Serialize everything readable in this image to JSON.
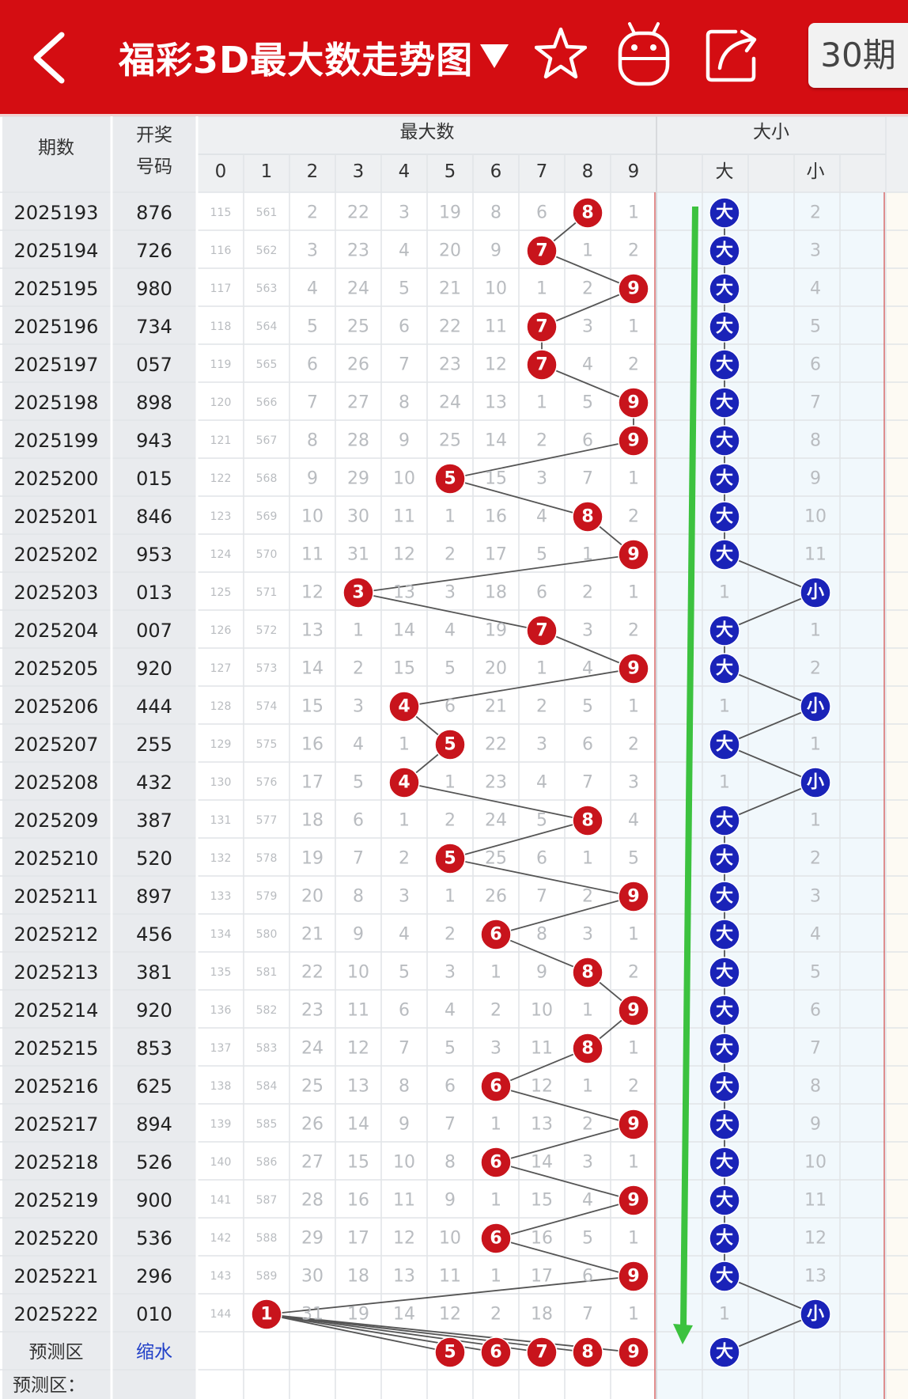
{
  "header": {
    "title": "福彩3D最大数走势图",
    "period_button": "30期",
    "icons": [
      "back-arrow-icon",
      "dropdown-triangle-icon",
      "star-icon",
      "android-robot-icon",
      "share-icon"
    ]
  },
  "table": {
    "col_issue": "期数",
    "col_draw_top": "开奖",
    "col_draw_bottom": "号码",
    "group_max": "最大数",
    "group_size": "大小",
    "digits": [
      "0",
      "1",
      "2",
      "3",
      "4",
      "5",
      "6",
      "7",
      "8",
      "9"
    ],
    "size_labels": [
      "大",
      "小"
    ],
    "predict_label": "预测区",
    "predict_value": "缩水",
    "predict_next": "预测区：",
    "rows": [
      {
        "issue": "2025193",
        "draw": "876",
        "max": 8,
        "size": "大",
        "miss": [
          "115",
          "561",
          "2",
          "22",
          "3",
          "19",
          "8",
          "6",
          "",
          "1"
        ],
        "miss_big": "",
        "miss_small": "2"
      },
      {
        "issue": "2025194",
        "draw": "726",
        "max": 7,
        "size": "大",
        "miss": [
          "116",
          "562",
          "3",
          "23",
          "4",
          "20",
          "9",
          "",
          "1",
          "2"
        ],
        "miss_big": "",
        "miss_small": "3"
      },
      {
        "issue": "2025195",
        "draw": "980",
        "max": 9,
        "size": "大",
        "miss": [
          "117",
          "563",
          "4",
          "24",
          "5",
          "21",
          "10",
          "1",
          "2",
          ""
        ],
        "miss_big": "",
        "miss_small": "4"
      },
      {
        "issue": "2025196",
        "draw": "734",
        "max": 7,
        "size": "大",
        "miss": [
          "118",
          "564",
          "5",
          "25",
          "6",
          "22",
          "11",
          "",
          "3",
          "1"
        ],
        "miss_big": "",
        "miss_small": "5"
      },
      {
        "issue": "2025197",
        "draw": "057",
        "max": 7,
        "size": "大",
        "miss": [
          "119",
          "565",
          "6",
          "26",
          "7",
          "23",
          "12",
          "",
          "4",
          "2"
        ],
        "miss_big": "",
        "miss_small": "6"
      },
      {
        "issue": "2025198",
        "draw": "898",
        "max": 9,
        "size": "大",
        "miss": [
          "120",
          "566",
          "7",
          "27",
          "8",
          "24",
          "13",
          "1",
          "5",
          ""
        ],
        "miss_big": "",
        "miss_small": "7"
      },
      {
        "issue": "2025199",
        "draw": "943",
        "max": 9,
        "size": "大",
        "miss": [
          "121",
          "567",
          "8",
          "28",
          "9",
          "25",
          "14",
          "2",
          "6",
          ""
        ],
        "miss_big": "",
        "miss_small": "8"
      },
      {
        "issue": "2025200",
        "draw": "015",
        "max": 5,
        "size": "大",
        "miss": [
          "122",
          "568",
          "9",
          "29",
          "10",
          "",
          "15",
          "3",
          "7",
          "1"
        ],
        "miss_big": "",
        "miss_small": "9"
      },
      {
        "issue": "2025201",
        "draw": "846",
        "max": 8,
        "size": "大",
        "miss": [
          "123",
          "569",
          "10",
          "30",
          "11",
          "1",
          "16",
          "4",
          "",
          "2"
        ],
        "miss_big": "",
        "miss_small": "10"
      },
      {
        "issue": "2025202",
        "draw": "953",
        "max": 9,
        "size": "大",
        "miss": [
          "124",
          "570",
          "11",
          "31",
          "12",
          "2",
          "17",
          "5",
          "1",
          ""
        ],
        "miss_big": "",
        "miss_small": "11"
      },
      {
        "issue": "2025203",
        "draw": "013",
        "max": 3,
        "size": "小",
        "miss": [
          "125",
          "571",
          "12",
          "",
          "13",
          "3",
          "18",
          "6",
          "2",
          "1"
        ],
        "miss_big": "1",
        "miss_small": ""
      },
      {
        "issue": "2025204",
        "draw": "007",
        "max": 7,
        "size": "大",
        "miss": [
          "126",
          "572",
          "13",
          "1",
          "14",
          "4",
          "19",
          "",
          "3",
          "2"
        ],
        "miss_big": "",
        "miss_small": "1"
      },
      {
        "issue": "2025205",
        "draw": "920",
        "max": 9,
        "size": "大",
        "miss": [
          "127",
          "573",
          "14",
          "2",
          "15",
          "5",
          "20",
          "1",
          "4",
          ""
        ],
        "miss_big": "",
        "miss_small": "2"
      },
      {
        "issue": "2025206",
        "draw": "444",
        "max": 4,
        "size": "小",
        "miss": [
          "128",
          "574",
          "15",
          "3",
          "",
          "6",
          "21",
          "2",
          "5",
          "1"
        ],
        "miss_big": "1",
        "miss_small": ""
      },
      {
        "issue": "2025207",
        "draw": "255",
        "max": 5,
        "size": "大",
        "miss": [
          "129",
          "575",
          "16",
          "4",
          "1",
          "",
          "22",
          "3",
          "6",
          "2"
        ],
        "miss_big": "",
        "miss_small": "1"
      },
      {
        "issue": "2025208",
        "draw": "432",
        "max": 4,
        "size": "小",
        "miss": [
          "130",
          "576",
          "17",
          "5",
          "",
          "1",
          "23",
          "4",
          "7",
          "3"
        ],
        "miss_big": "1",
        "miss_small": ""
      },
      {
        "issue": "2025209",
        "draw": "387",
        "max": 8,
        "size": "大",
        "miss": [
          "131",
          "577",
          "18",
          "6",
          "1",
          "2",
          "24",
          "5",
          "",
          "4"
        ],
        "miss_big": "",
        "miss_small": "1"
      },
      {
        "issue": "2025210",
        "draw": "520",
        "max": 5,
        "size": "大",
        "miss": [
          "132",
          "578",
          "19",
          "7",
          "2",
          "",
          "25",
          "6",
          "1",
          "5"
        ],
        "miss_big": "",
        "miss_small": "2"
      },
      {
        "issue": "2025211",
        "draw": "897",
        "max": 9,
        "size": "大",
        "miss": [
          "133",
          "579",
          "20",
          "8",
          "3",
          "1",
          "26",
          "7",
          "2",
          ""
        ],
        "miss_big": "",
        "miss_small": "3"
      },
      {
        "issue": "2025212",
        "draw": "456",
        "max": 6,
        "size": "大",
        "miss": [
          "134",
          "580",
          "21",
          "9",
          "4",
          "2",
          "",
          "8",
          "3",
          "1"
        ],
        "miss_big": "",
        "miss_small": "4"
      },
      {
        "issue": "2025213",
        "draw": "381",
        "max": 8,
        "size": "大",
        "miss": [
          "135",
          "581",
          "22",
          "10",
          "5",
          "3",
          "1",
          "9",
          "",
          "2"
        ],
        "miss_big": "",
        "miss_small": "5"
      },
      {
        "issue": "2025214",
        "draw": "920",
        "max": 9,
        "size": "大",
        "miss": [
          "136",
          "582",
          "23",
          "11",
          "6",
          "4",
          "2",
          "10",
          "1",
          ""
        ],
        "miss_big": "",
        "miss_small": "6"
      },
      {
        "issue": "2025215",
        "draw": "853",
        "max": 8,
        "size": "大",
        "miss": [
          "137",
          "583",
          "24",
          "12",
          "7",
          "5",
          "3",
          "11",
          "",
          "1"
        ],
        "miss_big": "",
        "miss_small": "7"
      },
      {
        "issue": "2025216",
        "draw": "625",
        "max": 6,
        "size": "大",
        "miss": [
          "138",
          "584",
          "25",
          "13",
          "8",
          "6",
          "",
          "12",
          "1",
          "2"
        ],
        "miss_big": "",
        "miss_small": "8"
      },
      {
        "issue": "2025217",
        "draw": "894",
        "max": 9,
        "size": "大",
        "miss": [
          "139",
          "585",
          "26",
          "14",
          "9",
          "7",
          "1",
          "13",
          "2",
          ""
        ],
        "miss_big": "",
        "miss_small": "9"
      },
      {
        "issue": "2025218",
        "draw": "526",
        "max": 6,
        "size": "大",
        "miss": [
          "140",
          "586",
          "27",
          "15",
          "10",
          "8",
          "",
          "14",
          "3",
          "1"
        ],
        "miss_big": "",
        "miss_small": "10"
      },
      {
        "issue": "2025219",
        "draw": "900",
        "max": 9,
        "size": "大",
        "miss": [
          "141",
          "587",
          "28",
          "16",
          "11",
          "9",
          "1",
          "15",
          "4",
          ""
        ],
        "miss_big": "",
        "miss_small": "11"
      },
      {
        "issue": "2025220",
        "draw": "536",
        "max": 6,
        "size": "大",
        "miss": [
          "142",
          "588",
          "29",
          "17",
          "12",
          "10",
          "",
          "16",
          "5",
          "1"
        ],
        "miss_big": "",
        "miss_small": "12"
      },
      {
        "issue": "2025221",
        "draw": "296",
        "max": 9,
        "size": "大",
        "miss": [
          "143",
          "589",
          "30",
          "18",
          "13",
          "11",
          "1",
          "17",
          "6",
          ""
        ],
        "miss_big": "",
        "miss_small": "13"
      },
      {
        "issue": "2025222",
        "draw": "010",
        "max": 1,
        "size": "小",
        "miss": [
          "144",
          "",
          "31",
          "19",
          "14",
          "12",
          "2",
          "18",
          "7",
          "1"
        ],
        "miss_big": "1",
        "miss_small": ""
      }
    ],
    "predict_max": [
      5,
      6,
      7,
      8,
      9
    ],
    "predict_size": "大"
  },
  "colors": {
    "brand_red": "#d40d12",
    "ball_red": "#c8141c",
    "ball_blue": "#1a23b8",
    "trend_arrow": "#3cc23f"
  }
}
